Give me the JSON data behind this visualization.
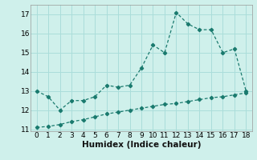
{
  "xlabel": "Humidex (Indice chaleur)",
  "bg_color": "#cff0eb",
  "grid_color": "#aaddda",
  "line_color": "#1a7a6e",
  "upper_x": [
    0,
    1,
    2,
    3,
    4,
    5,
    6,
    7,
    8,
    9,
    10,
    11,
    12,
    13,
    14,
    15,
    16,
    17,
    18
  ],
  "upper_y": [
    13.0,
    12.7,
    12.0,
    12.5,
    12.5,
    12.7,
    13.3,
    13.2,
    13.3,
    14.2,
    15.4,
    15.0,
    17.1,
    16.5,
    16.2,
    16.2,
    15.0,
    15.2,
    13.0
  ],
  "lower_x": [
    0,
    1,
    2,
    3,
    4,
    5,
    6,
    7,
    8,
    9,
    10,
    11,
    12,
    13,
    14,
    15,
    16,
    17,
    18
  ],
  "lower_y": [
    11.1,
    11.15,
    11.25,
    11.4,
    11.5,
    11.65,
    11.8,
    11.9,
    12.0,
    12.1,
    12.2,
    12.3,
    12.35,
    12.45,
    12.55,
    12.65,
    12.7,
    12.8,
    12.9
  ],
  "xlim": [
    -0.5,
    18.5
  ],
  "ylim": [
    10.9,
    17.5
  ],
  "yticks": [
    11,
    12,
    13,
    14,
    15,
    16,
    17
  ],
  "xticks": [
    0,
    1,
    2,
    3,
    4,
    5,
    6,
    7,
    8,
    9,
    10,
    11,
    12,
    13,
    14,
    15,
    16,
    17,
    18
  ],
  "tick_fontsize": 6.5,
  "xlabel_fontsize": 7.5
}
